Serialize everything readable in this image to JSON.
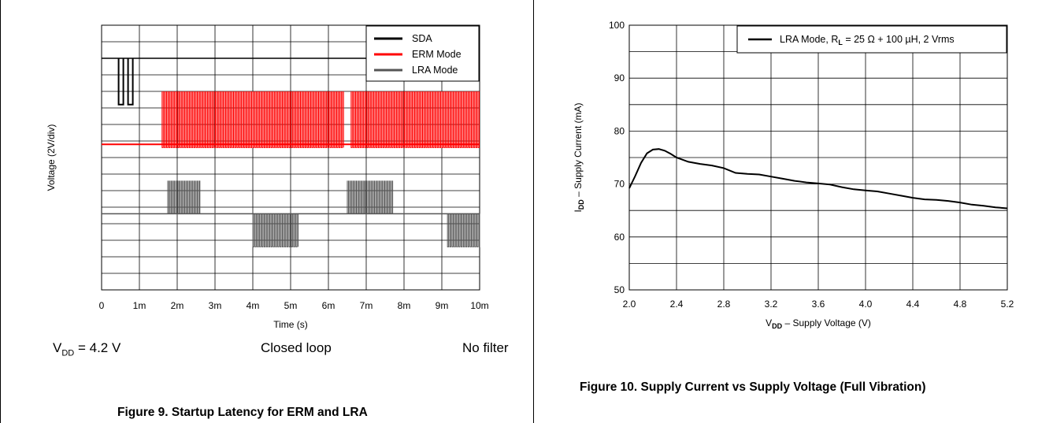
{
  "chart_data": [
    {
      "type": "line",
      "title": "",
      "xlabel": "Time (s)",
      "ylabel": "Voltage (2V/div)",
      "x_tick_labels": [
        "0",
        "1m",
        "2m",
        "3m",
        "4m",
        "5m",
        "6m",
        "7m",
        "8m",
        "9m",
        "10m"
      ],
      "xlim": [
        0,
        10
      ],
      "grid": true,
      "legend_position": "top-right",
      "series": [
        {
          "name": "SDA",
          "color": "#000000",
          "baseline": 7.0,
          "high": 7.0,
          "low": 5.6,
          "bursts": [
            [
              0.45,
              0.95
            ]
          ]
        },
        {
          "name": "ERM Mode",
          "color": "#ff0000",
          "baseline": 4.4,
          "high": 6.0,
          "low": 4.3,
          "bursts": [
            [
              1.6,
              6.4
            ],
            [
              6.6,
              10.0
            ]
          ]
        },
        {
          "name": "LRA Mode",
          "color": "#555555",
          "baseline": 2.3,
          "high": 3.3,
          "low": 2.3,
          "extra_bursts": [
            [
              4.0,
              5.2
            ],
            [
              9.15,
              10.0
            ]
          ],
          "extra_low": 1.3,
          "bursts": [
            [
              1.75,
              2.6
            ],
            [
              6.5,
              7.7
            ]
          ]
        }
      ],
      "conditions": {
        "vdd_prefix": "V",
        "vdd_sub": "DD",
        "vdd_value": " = 4.2 V",
        "loop": "Closed loop",
        "filter": "No filter"
      },
      "caption": "Figure 9. Startup Latency for ERM and LRA"
    },
    {
      "type": "line",
      "title": "",
      "xlabel_main": "V",
      "xlabel_sub": "DD",
      "xlabel_rest": " – Supply Voltage (V)",
      "ylabel_main": "I",
      "ylabel_sub": "DD",
      "ylabel_rest": " – Supply Current (mA)",
      "xlim": [
        2.0,
        5.2
      ],
      "ylim": [
        50,
        100
      ],
      "x_ticks": [
        "2.0",
        "2.4",
        "2.8",
        "3.2",
        "3.6",
        "4.0",
        "4.4",
        "4.8",
        "5.2"
      ],
      "y_ticks": [
        "50",
        "60",
        "70",
        "80",
        "90",
        "100"
      ],
      "grid": true,
      "legend_position": "top-right",
      "series": [
        {
          "name": "LRA Mode, R_L = 25 Ω + 100 µH, 2 Vrms",
          "legend_prefix": "LRA Mode, R",
          "legend_sub": "L",
          "legend_suffix": " = 25 Ω + 100 µH, 2 Vrms",
          "color": "#000000",
          "x": [
            2.0,
            2.05,
            2.1,
            2.15,
            2.2,
            2.25,
            2.3,
            2.35,
            2.4,
            2.5,
            2.6,
            2.7,
            2.8,
            2.9,
            3.0,
            3.1,
            3.2,
            3.3,
            3.4,
            3.5,
            3.6,
            3.7,
            3.8,
            3.9,
            4.0,
            4.1,
            4.2,
            4.3,
            4.4,
            4.5,
            4.6,
            4.7,
            4.8,
            4.9,
            5.0,
            5.1,
            5.2
          ],
          "y": [
            69.2,
            71.5,
            74.0,
            75.8,
            76.5,
            76.6,
            76.3,
            75.7,
            75.0,
            74.2,
            73.8,
            73.5,
            73.0,
            72.1,
            71.9,
            71.8,
            71.4,
            71.0,
            70.6,
            70.3,
            70.1,
            69.9,
            69.4,
            69.0,
            68.8,
            68.6,
            68.2,
            67.8,
            67.4,
            67.1,
            67.0,
            66.8,
            66.5,
            66.1,
            65.9,
            65.6,
            65.4
          ]
        }
      ],
      "caption": "Figure 10. Supply Current vs Supply Voltage (Full Vibration)"
    }
  ]
}
